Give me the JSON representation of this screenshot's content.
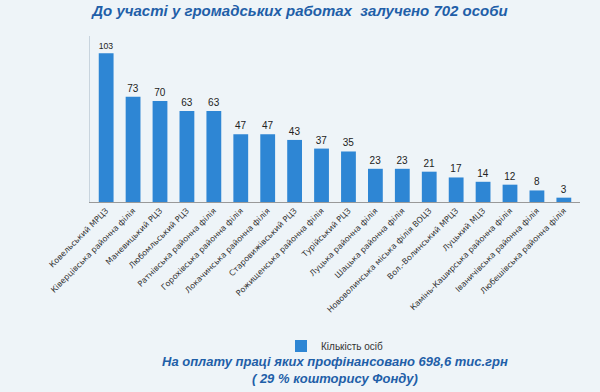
{
  "chart_data": {
    "type": "bar",
    "title": "До участі у громадських работах  залучено 702 особи",
    "categories": [
      "Ковельський МРЦЗ",
      "Ківерцівська районна філія",
      "Маневицький РЦЗ",
      "Любомльський РЦЗ",
      "Ратнівська районна філія",
      "Горохівська районна філія",
      "Локачинська районна філія",
      "Старовижівський РЦЗ",
      "Рожищенська районна філія",
      "Турійський РЦЗ",
      "Луцька районна філія",
      "Шацька районна філія",
      "Нововолинська міська філія ВОЦЗ",
      "Вол.-Волинський МРЦЗ",
      "Луцький МЦЗ",
      "Камінь-Каширська районна філія",
      "Іваничівська районна філія",
      "Любешівська районна філія"
    ],
    "series": [
      {
        "name": "Кількість осіб",
        "color": "#2e86d4",
        "values": [
          103,
          73,
          70,
          63,
          63,
          47,
          47,
          43,
          37,
          35,
          23,
          23,
          21,
          17,
          14,
          12,
          8,
          3
        ]
      }
    ],
    "ylim": [
      0,
      115
    ],
    "grid": false,
    "tick_labels": "x",
    "data_labels": true,
    "legend": "bottom",
    "annotations": [
      "На оплату праці яких профінансовано 698,6 тис.грн",
      "( 29 % кошторису Фонду)"
    ]
  }
}
